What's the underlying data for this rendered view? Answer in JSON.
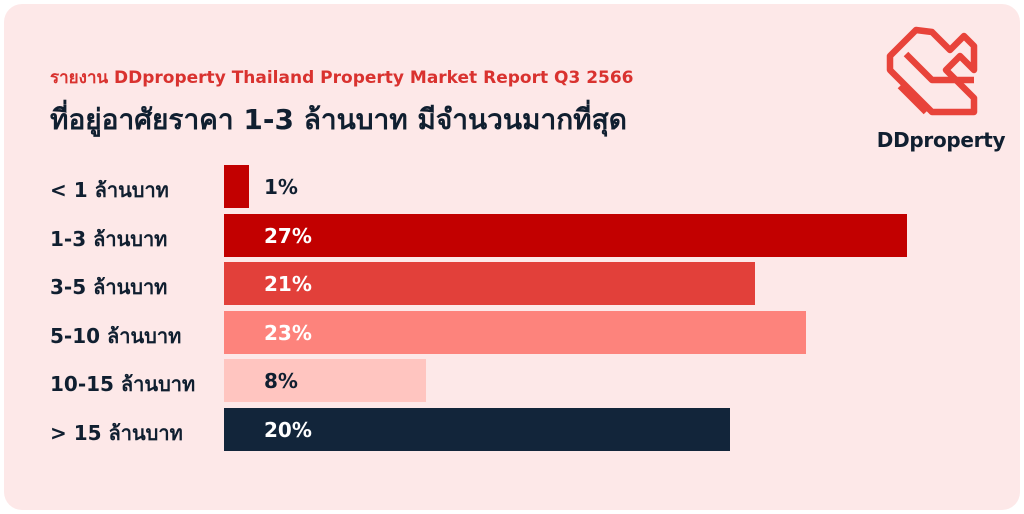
{
  "header": {
    "subtitle": "รายงาน DDproperty Thailand Property Market Report Q3 2566",
    "title": "ที่อยู่อาศัยราคา 1-3 ล้านบาท มีจำนวนมากที่สุด"
  },
  "brand": {
    "name": "DDproperty",
    "logo_icon": "ddproperty-logo-icon",
    "color": "#e8433a"
  },
  "chart_data": {
    "type": "bar",
    "orientation": "horizontal",
    "categories": [
      "< 1 ล้านบาท",
      "1-3 ล้านบาท",
      "3-5 ล้านบาท",
      "5-10 ล้านบาท",
      "10-15 ล้านบาท",
      "> 15 ล้านบาท"
    ],
    "values": [
      1,
      27,
      21,
      23,
      8,
      20
    ],
    "labels": [
      "1%",
      "27%",
      "21%",
      "23%",
      "8%",
      "20%"
    ],
    "colors": [
      "#c20000",
      "#c20000",
      "#e2403a",
      "#fd837c",
      "#ffc5c0",
      "#12253a"
    ],
    "label_colors": [
      "#101f30",
      "#ffffff",
      "#ffffff",
      "#ffffff",
      "#101f30",
      "#ffffff"
    ],
    "xlim": [
      0,
      27
    ],
    "grid": false,
    "legend": "none"
  }
}
